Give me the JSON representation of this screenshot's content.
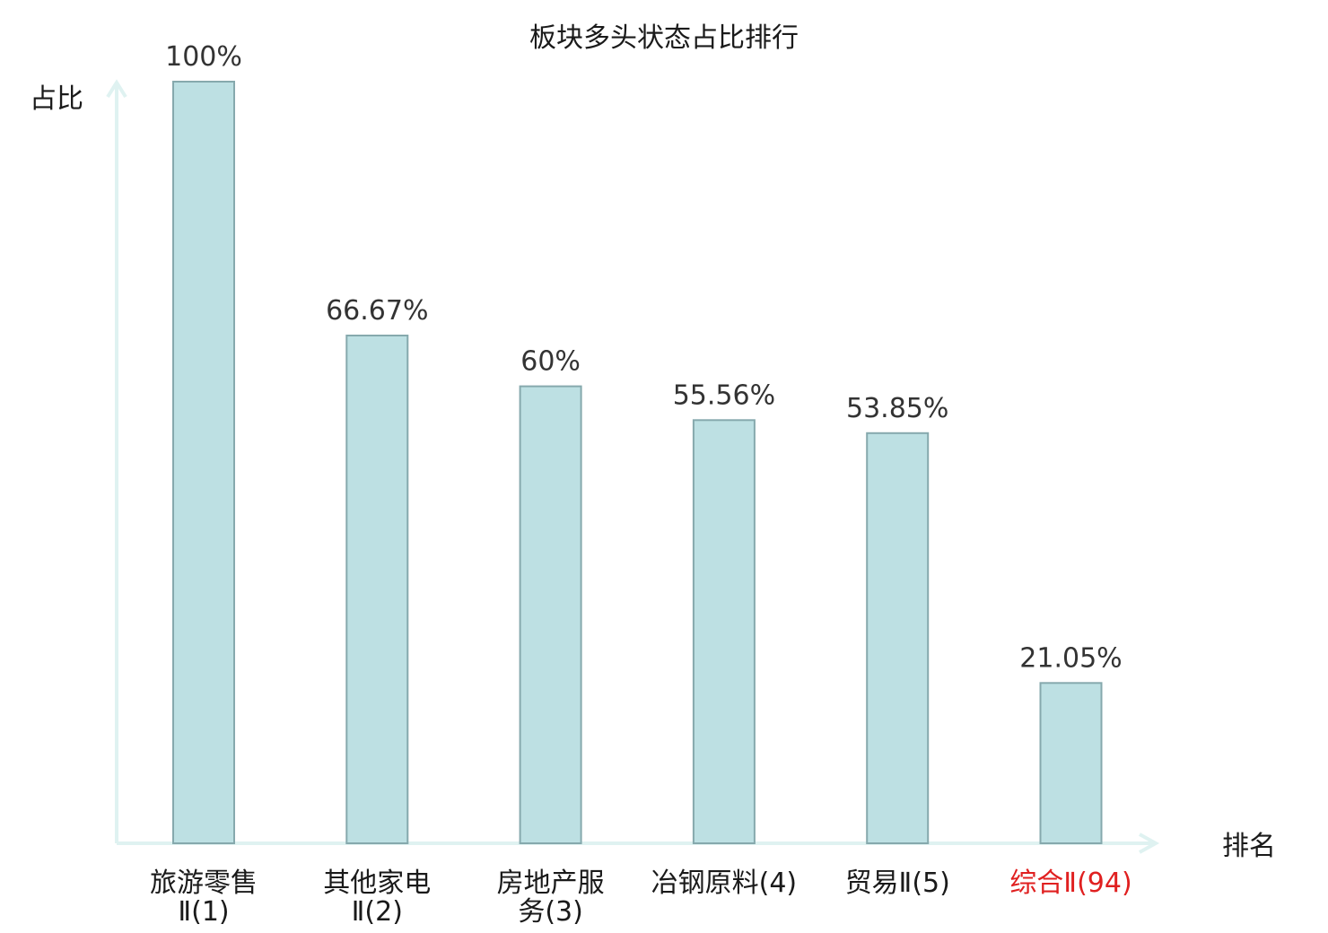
{
  "chart_data": {
    "type": "bar",
    "title": "板块多头状态占比排行",
    "ylabel": "占比",
    "xlabel": "排名",
    "ylim": [
      0,
      100
    ],
    "grid": false,
    "legend": "none",
    "categories": [
      {
        "name": "旅游零售Ⅱ",
        "rank": "(1)",
        "lines": [
          "旅游零售",
          "Ⅱ(1)"
        ],
        "highlight": false
      },
      {
        "name": "其他家电Ⅱ",
        "rank": "(2)",
        "lines": [
          "其他家电",
          "Ⅱ(2)"
        ],
        "highlight": false
      },
      {
        "name": "房地产服务",
        "rank": "(3)",
        "lines": [
          "房地产服",
          "务(3)"
        ],
        "highlight": false
      },
      {
        "name": "冶钢原料",
        "rank": "(4)",
        "lines": [
          "冶钢原料(4)"
        ],
        "highlight": false
      },
      {
        "name": "贸易Ⅱ",
        "rank": "(5)",
        "lines": [
          "贸易Ⅱ(5)"
        ],
        "highlight": false
      },
      {
        "name": "综合Ⅱ",
        "rank": "(94)",
        "lines": [
          "综合Ⅱ(94)"
        ],
        "highlight": true
      }
    ],
    "values": [
      100,
      66.67,
      60,
      55.56,
      53.85,
      21.05
    ],
    "value_labels": [
      "100%",
      "66.67%",
      "60%",
      "55.56%",
      "53.85%",
      "21.05%"
    ],
    "colors": {
      "bar_fill": "#bde0e3",
      "bar_stroke": "#86a9ad",
      "axis": "#dff2f1",
      "highlight_text": "#e02020",
      "text": "#1a1a1a"
    }
  }
}
